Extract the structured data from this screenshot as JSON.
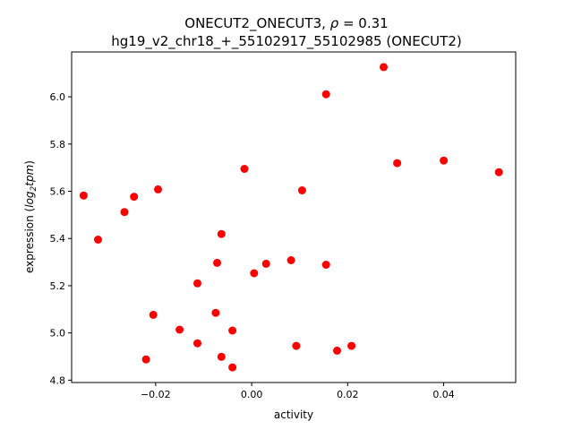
{
  "chart_data": {
    "type": "scatter",
    "title_line1": "ONECUT2_ONECUT3, ρ = 0.31",
    "title_line2": "hg19_v2_chr18_+_55102917_55102985 (ONECUT2)",
    "xlabel": "activity",
    "ylabel": "expression (log2tpm)",
    "xlim": [
      -0.0375,
      0.055
    ],
    "ylim": [
      4.79,
      6.19
    ],
    "xticks": [
      {
        "value": -0.02,
        "label": "−0.02"
      },
      {
        "value": 0.0,
        "label": "0.00"
      },
      {
        "value": 0.02,
        "label": "0.02"
      },
      {
        "value": 0.04,
        "label": "0.04"
      }
    ],
    "yticks": [
      {
        "value": 4.8,
        "label": "4.8"
      },
      {
        "value": 5.0,
        "label": "5.0"
      },
      {
        "value": 5.2,
        "label": "5.2"
      },
      {
        "value": 5.4,
        "label": "5.4"
      },
      {
        "value": 5.6,
        "label": "5.6"
      },
      {
        "value": 5.8,
        "label": "5.8"
      },
      {
        "value": 6.0,
        "label": "6.0"
      }
    ],
    "marker_color": "#ff0000",
    "points": [
      {
        "x": -0.035,
        "y": 5.582
      },
      {
        "x": -0.032,
        "y": 5.395
      },
      {
        "x": -0.0265,
        "y": 5.512
      },
      {
        "x": -0.0245,
        "y": 5.577
      },
      {
        "x": -0.0195,
        "y": 5.608
      },
      {
        "x": -0.0205,
        "y": 5.077
      },
      {
        "x": -0.022,
        "y": 4.888
      },
      {
        "x": -0.015,
        "y": 5.014
      },
      {
        "x": -0.0113,
        "y": 5.21
      },
      {
        "x": -0.0113,
        "y": 4.956
      },
      {
        "x": -0.0075,
        "y": 5.085
      },
      {
        "x": -0.0072,
        "y": 5.297
      },
      {
        "x": -0.0063,
        "y": 5.419
      },
      {
        "x": -0.0063,
        "y": 4.899
      },
      {
        "x": -0.004,
        "y": 5.01
      },
      {
        "x": -0.004,
        "y": 4.854
      },
      {
        "x": -0.0015,
        "y": 5.695
      },
      {
        "x": 0.0005,
        "y": 5.253
      },
      {
        "x": 0.003,
        "y": 5.293
      },
      {
        "x": 0.0082,
        "y": 5.308
      },
      {
        "x": 0.0093,
        "y": 4.945
      },
      {
        "x": 0.0105,
        "y": 5.604
      },
      {
        "x": 0.0155,
        "y": 5.289
      },
      {
        "x": 0.0155,
        "y": 6.011
      },
      {
        "x": 0.0178,
        "y": 4.925
      },
      {
        "x": 0.0208,
        "y": 4.945
      },
      {
        "x": 0.0275,
        "y": 6.126
      },
      {
        "x": 0.0303,
        "y": 5.719
      },
      {
        "x": 0.04,
        "y": 5.73
      },
      {
        "x": 0.0515,
        "y": 5.681
      }
    ]
  }
}
